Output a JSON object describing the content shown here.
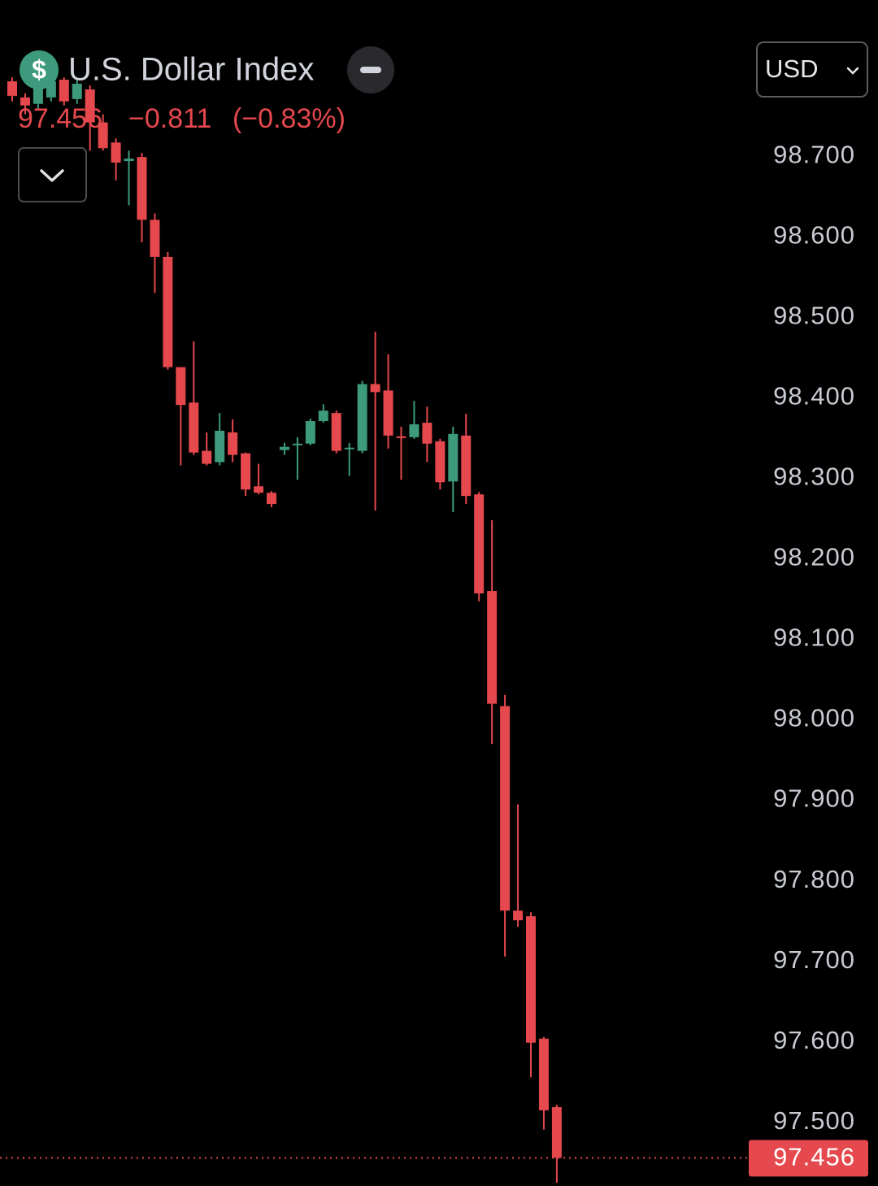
{
  "header": {
    "icon": "$",
    "title": "U.S. Dollar Index",
    "change": "−0.811",
    "change_pct": "(−0.83%)",
    "currency": "USD"
  },
  "chart_data": {
    "type": "candlestick",
    "up_color": "#3d9a7c",
    "down_color": "#e5484d",
    "open": [
      98.793,
      98.773,
      98.765,
      98.773,
      98.795,
      98.771,
      98.783,
      98.742,
      98.717,
      98.694,
      98.699,
      98.621,
      98.575,
      98.438,
      98.394,
      98.334,
      98.32,
      98.357,
      98.331,
      98.29,
      98.282,
      98.335,
      98.341,
      98.343,
      98.371,
      98.381,
      98.336,
      98.334,
      98.417,
      98.409,
      98.352,
      98.351,
      98.369,
      98.346,
      98.296,
      98.353,
      98.28,
      98.16,
      98.017,
      97.763,
      97.756,
      97.604,
      97.519
    ],
    "high": [
      98.798,
      98.778,
      98.793,
      98.798,
      98.798,
      98.795,
      98.788,
      98.752,
      98.722,
      98.707,
      98.704,
      98.629,
      98.581,
      98.438,
      98.47,
      98.357,
      98.381,
      98.373,
      98.332,
      98.318,
      98.284,
      98.344,
      98.351,
      98.374,
      98.392,
      98.384,
      98.344,
      98.421,
      98.482,
      98.454,
      98.364,
      98.396,
      98.389,
      98.349,
      98.364,
      98.38,
      98.283,
      98.248,
      98.031,
      97.895,
      97.761,
      97.606,
      97.522
    ],
    "low": [
      98.768,
      98.752,
      98.758,
      98.768,
      98.763,
      98.765,
      98.707,
      98.707,
      98.67,
      98.639,
      98.593,
      98.53,
      98.435,
      98.316,
      98.329,
      98.316,
      98.316,
      98.32,
      98.278,
      98.28,
      98.264,
      98.329,
      98.298,
      98.341,
      98.369,
      98.331,
      98.303,
      98.331,
      98.26,
      98.337,
      98.298,
      98.349,
      98.32,
      98.286,
      98.258,
      98.268,
      98.147,
      97.97,
      97.706,
      97.743,
      97.556,
      97.491,
      97.425
    ],
    "close": [
      98.775,
      98.763,
      98.785,
      98.793,
      98.768,
      98.79,
      98.742,
      98.71,
      98.692,
      98.697,
      98.621,
      98.575,
      98.438,
      98.391,
      98.332,
      98.318,
      98.359,
      98.329,
      98.286,
      98.282,
      98.268,
      98.339,
      98.343,
      98.371,
      98.384,
      98.334,
      98.338,
      98.417,
      98.407,
      98.353,
      98.35,
      98.367,
      98.343,
      98.295,
      98.355,
      98.278,
      98.157,
      98.02,
      97.763,
      97.751,
      97.599,
      97.515,
      97.456
    ],
    "last_price": 97.456,
    "ylim": [
      97.421,
      98.894
    ],
    "yticks": [
      {
        "value": 97.5,
        "label": "97.500"
      },
      {
        "value": 97.6,
        "label": "97.600"
      },
      {
        "value": 97.7,
        "label": "97.700"
      },
      {
        "value": 97.8,
        "label": "97.800"
      },
      {
        "value": 97.9,
        "label": "97.900"
      },
      {
        "value": 98.0,
        "label": "98.000"
      },
      {
        "value": 98.1,
        "label": "98.100"
      },
      {
        "value": 98.2,
        "label": "98.200"
      },
      {
        "value": 98.3,
        "label": "98.300"
      },
      {
        "value": 98.4,
        "label": "98.400"
      },
      {
        "value": 98.5,
        "label": "98.500"
      },
      {
        "value": 98.6,
        "label": "98.600"
      },
      {
        "value": 98.7,
        "label": "98.700"
      }
    ]
  }
}
